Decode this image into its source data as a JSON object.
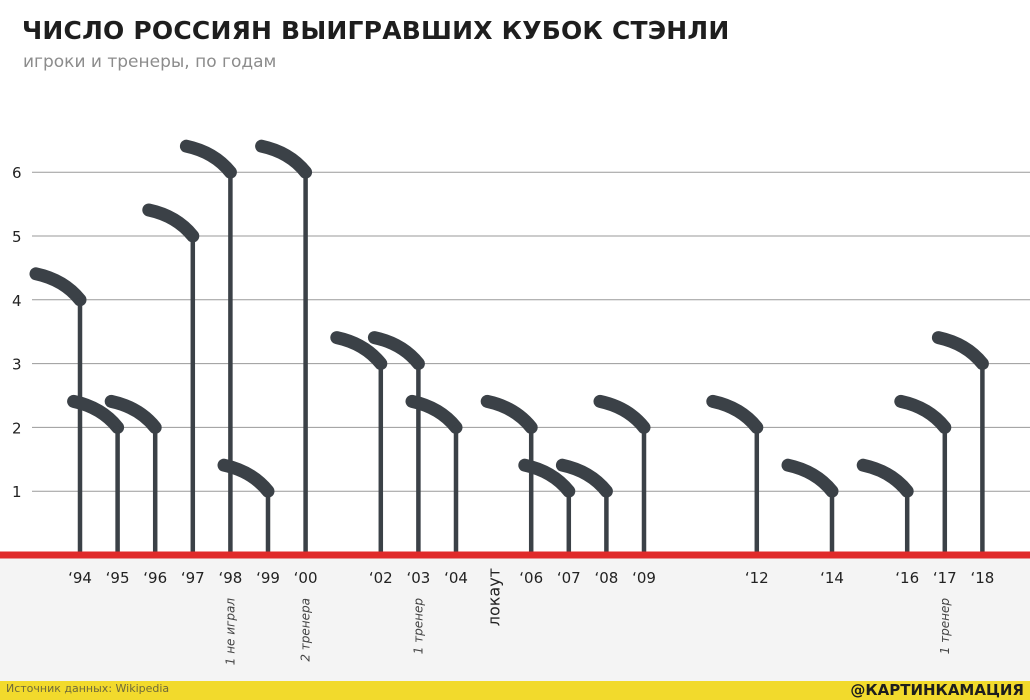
{
  "header": {
    "title": "ЧИСЛО РОССИЯН ВЫИГРАВШИХ КУБОК СТЭНЛИ",
    "subtitle": "игроки и тренеры, по годам"
  },
  "footer": {
    "source": "Источник данных: Wikipedia",
    "brand": "@КАРТИНКАМАЦИЯ"
  },
  "colors": {
    "stick": "#3b4147",
    "baseline": "#e02a2a",
    "grid": "#9a9a9a",
    "lower_band": "#f4f4f4",
    "footer": "#f2da2c"
  },
  "chart_data": {
    "type": "bar",
    "ylim": [
      0,
      6.6
    ],
    "yticks": [
      1,
      2,
      3,
      4,
      5,
      6
    ],
    "grid": true,
    "categories": [
      "‘94",
      "‘95",
      "‘96",
      "‘97",
      "‘98",
      "‘99",
      "‘00",
      "‘02",
      "‘03",
      "‘04",
      "локаут",
      "‘06",
      "‘07",
      "‘08",
      "‘09",
      "‘12",
      "‘14",
      "‘16",
      "‘17",
      "‘18"
    ],
    "values": [
      4,
      2,
      2,
      5,
      6,
      1,
      6,
      3,
      3,
      2,
      null,
      2,
      1,
      1,
      2,
      2,
      1,
      1,
      2,
      3
    ],
    "x_positions": [
      1994,
      1995,
      1996,
      1997,
      1998,
      1999,
      2000,
      2002,
      2003,
      2004,
      2005,
      2006,
      2007,
      2008,
      2009,
      2012,
      2014,
      2016,
      2017,
      2018
    ],
    "rotated_categories": [
      "локаут"
    ],
    "annotations": [
      {
        "category": "‘98",
        "text": "1 не играл"
      },
      {
        "category": "‘00",
        "text": "2 тренера"
      },
      {
        "category": "‘03",
        "text": "1 тренер"
      },
      {
        "category": "‘17",
        "text": "1 тренер"
      }
    ]
  }
}
